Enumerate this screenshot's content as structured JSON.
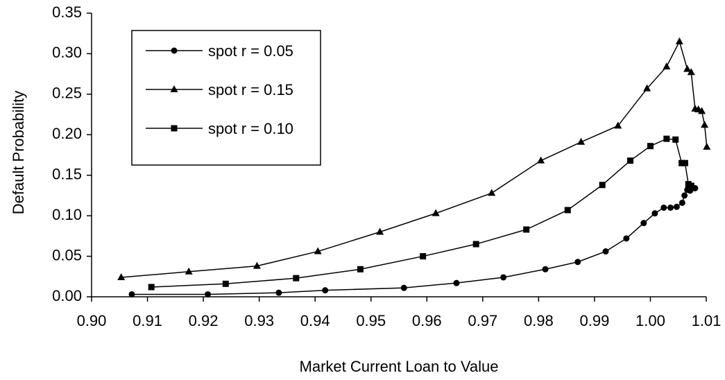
{
  "chart_data": {
    "type": "line",
    "x_label": "Market Current Loan to Value",
    "y_label": "Default Probability",
    "xlim": [
      0.9,
      1.01
    ],
    "ylim": [
      0,
      0.35
    ],
    "xticks": [
      {
        "value": 0.9,
        "label": "0.90"
      },
      {
        "value": 0.91,
        "label": "0.91"
      },
      {
        "value": 0.92,
        "label": "0.92"
      },
      {
        "value": 0.93,
        "label": "0.93"
      },
      {
        "value": 0.94,
        "label": "0.94"
      },
      {
        "value": 0.95,
        "label": "0.95"
      },
      {
        "value": 0.96,
        "label": "0.96"
      },
      {
        "value": 0.97,
        "label": "0.97"
      },
      {
        "value": 0.98,
        "label": "0.98"
      },
      {
        "value": 0.99,
        "label": "0.99"
      },
      {
        "value": 1.0,
        "label": "1.00"
      },
      {
        "value": 1.01,
        "label": "1.01"
      }
    ],
    "yticks": [
      {
        "value": 0,
        "label": "0.00"
      },
      {
        "value": 0.05,
        "label": "0.05"
      },
      {
        "value": 0.1,
        "label": "0.10"
      },
      {
        "value": 0.15,
        "label": "0.15"
      },
      {
        "value": 0.2,
        "label": "0.20"
      },
      {
        "value": 0.25,
        "label": "0.25"
      },
      {
        "value": 0.3,
        "label": "0.30"
      },
      {
        "value": 0.35,
        "label": "0.35"
      }
    ],
    "grid": false,
    "legend": "upper-left",
    "series": [
      {
        "name": "spot r = 0.05",
        "color": "#000000",
        "marker": "circle",
        "x": [
          0.9072,
          0.9208,
          0.9335,
          0.9418,
          0.9559,
          0.9653,
          0.9737,
          0.9812,
          0.987,
          0.992,
          0.9957,
          0.9988,
          1.0008,
          1.0024,
          1.0036,
          1.0047,
          1.0057,
          1.0061,
          1.0066,
          1.0071,
          1.0075,
          1.008
        ],
        "values": [
          0.003,
          0.003,
          0.005,
          0.008,
          0.011,
          0.017,
          0.024,
          0.034,
          0.043,
          0.056,
          0.072,
          0.091,
          0.103,
          0.11,
          0.11,
          0.111,
          0.116,
          0.125,
          0.132,
          0.131,
          0.134,
          0.134
        ]
      },
      {
        "name": "spot r = 0.15",
        "color": "#000000",
        "marker": "triangle",
        "x": [
          0.9053,
          0.9174,
          0.9296,
          0.9405,
          0.9516,
          0.9616,
          0.9716,
          0.9804,
          0.9876,
          0.9942,
          0.9994,
          1.0029,
          1.0052,
          1.0066,
          1.0073,
          1.008,
          1.0086,
          1.0092,
          1.0097,
          1.0101
        ],
        "values": [
          0.024,
          0.031,
          0.038,
          0.056,
          0.08,
          0.103,
          0.128,
          0.168,
          0.191,
          0.211,
          0.257,
          0.284,
          0.315,
          0.281,
          0.277,
          0.232,
          0.231,
          0.229,
          0.212,
          0.185
        ]
      },
      {
        "name": "spot r = 0.10",
        "color": "#000000",
        "marker": "square",
        "x": [
          0.9107,
          0.924,
          0.9366,
          0.9481,
          0.9593,
          0.9688,
          0.9778,
          0.9852,
          0.9914,
          0.9964,
          1.0,
          1.0029,
          1.0045,
          1.0056,
          1.0062,
          1.0068,
          1.0073
        ],
        "values": [
          0.012,
          0.016,
          0.023,
          0.034,
          0.05,
          0.065,
          0.083,
          0.107,
          0.138,
          0.168,
          0.186,
          0.195,
          0.194,
          0.165,
          0.165,
          0.139,
          0.137
        ]
      }
    ]
  }
}
